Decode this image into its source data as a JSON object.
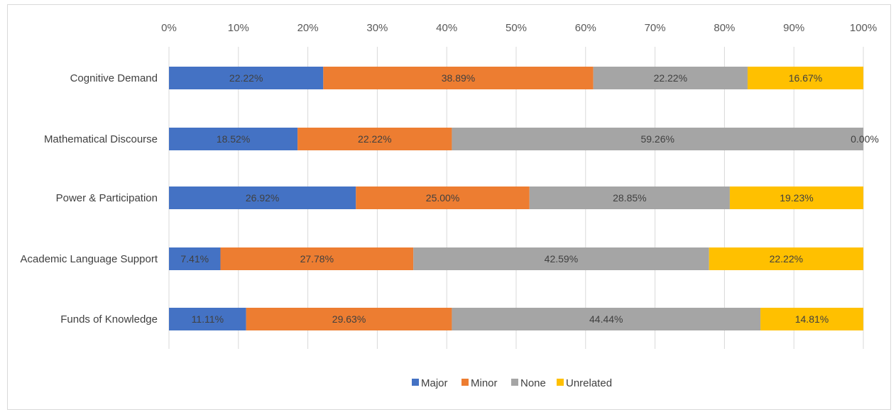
{
  "colors": {
    "major": "#4472C4",
    "minor": "#ED7D31",
    "none": "#A5A5A5",
    "unrelated": "#FFC000",
    "grid": "#D9D9D9",
    "text": "#404040"
  },
  "chart_data": {
    "type": "bar",
    "orientation": "horizontal",
    "stacked": "percent",
    "title": "",
    "xlabel": "",
    "ylabel": "",
    "xlim": [
      0,
      100
    ],
    "axis_position": "top",
    "grid": true,
    "legend_position": "bottom",
    "x_ticks": [
      "0%",
      "10%",
      "20%",
      "30%",
      "40%",
      "50%",
      "60%",
      "70%",
      "80%",
      "90%",
      "100%"
    ],
    "categories": [
      "Cognitive Demand",
      "Mathematical Discourse",
      "Power & Participation",
      "Academic Language Support",
      "Funds of Knowledge"
    ],
    "series": [
      {
        "name": "Major",
        "color_key": "major",
        "values": [
          22.22,
          18.52,
          26.92,
          7.41,
          11.11
        ],
        "labels": [
          "22.22%",
          "18.52%",
          "26.92%",
          "7.41%",
          "11.11%"
        ]
      },
      {
        "name": "Minor",
        "color_key": "minor",
        "values": [
          38.89,
          22.22,
          25.0,
          27.78,
          29.63
        ],
        "labels": [
          "38.89%",
          "22.22%",
          "25.00%",
          "27.78%",
          "29.63%"
        ]
      },
      {
        "name": "None",
        "color_key": "none",
        "values": [
          22.22,
          59.26,
          28.85,
          42.59,
          44.44
        ],
        "labels": [
          "22.22%",
          "59.26%",
          "28.85%",
          "42.59%",
          "44.44%"
        ]
      },
      {
        "name": "Unrelated",
        "color_key": "unrelated",
        "values": [
          16.67,
          0.0,
          19.23,
          22.22,
          14.81
        ],
        "labels": [
          "16.67%",
          "0.00%",
          "19.23%",
          "22.22%",
          "14.81%"
        ]
      }
    ]
  }
}
